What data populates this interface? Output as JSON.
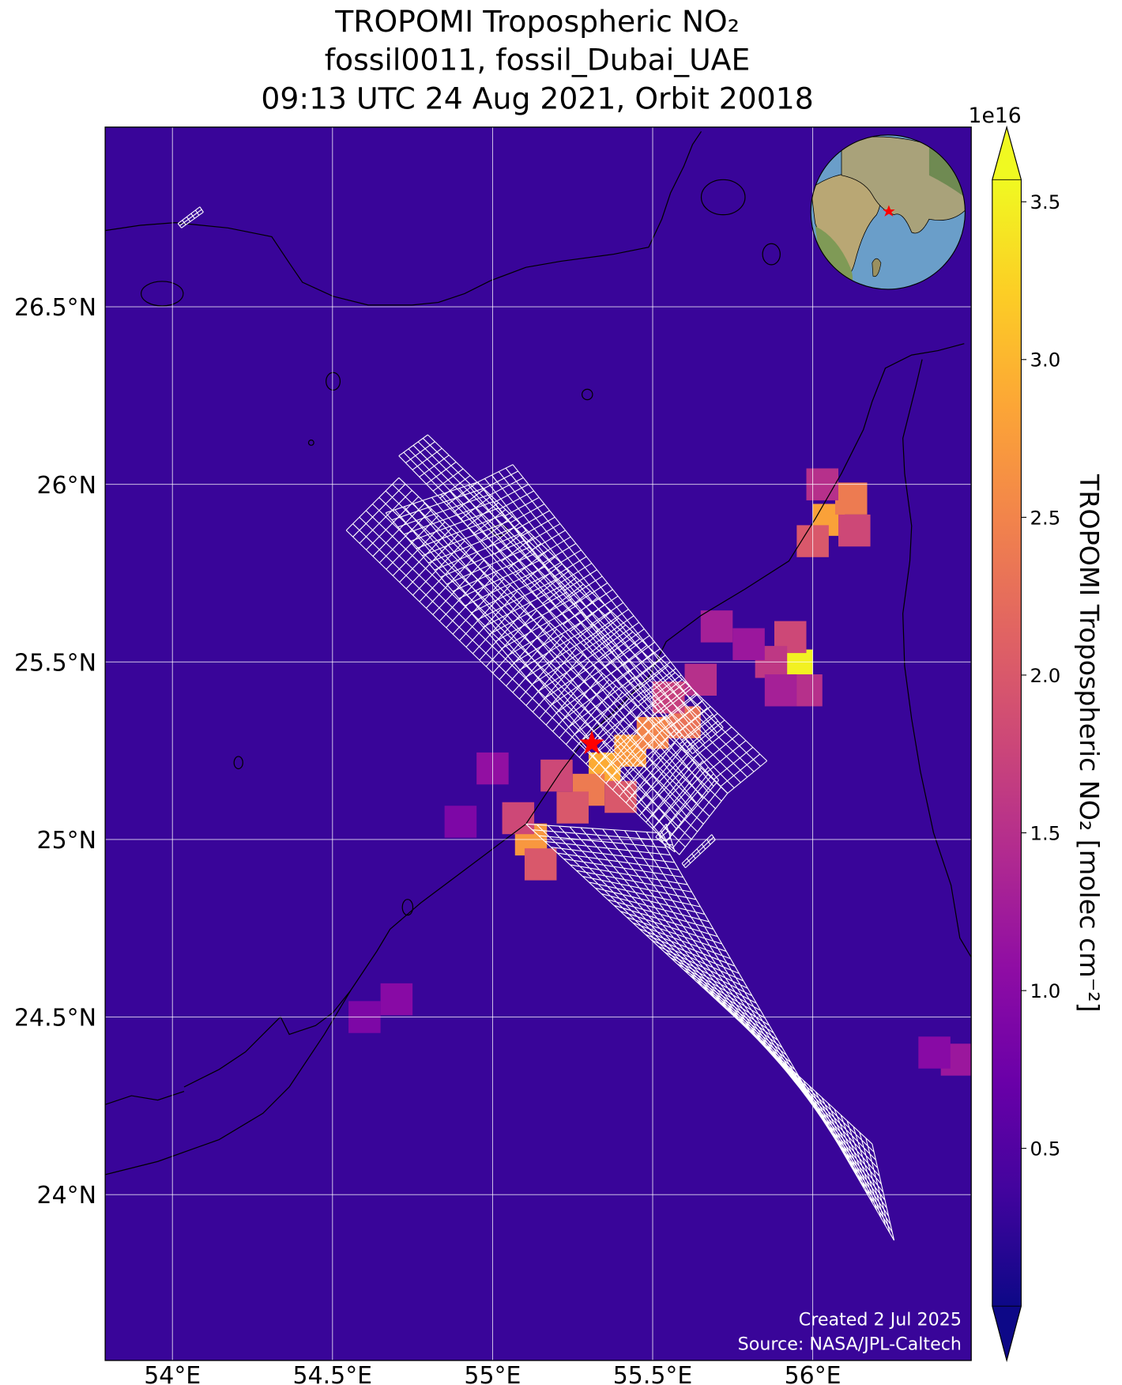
{
  "chart_data": {
    "type": "map",
    "title_lines": [
      "TROPOMI Tropospheric NO₂",
      "fossil0011, fossil_Dubai_UAE",
      "09:13 UTC 24 Aug 2021, Orbit 20018"
    ],
    "xlim": [
      53.79,
      56.495
    ],
    "ylim": [
      23.533,
      27.006
    ],
    "xticks": [
      {
        "value": 54,
        "label": "54°E"
      },
      {
        "value": 54.5,
        "label": "54.5°E"
      },
      {
        "value": 55,
        "label": "55°E"
      },
      {
        "value": 55.5,
        "label": "55.5°E"
      },
      {
        "value": 56,
        "label": "56°E"
      }
    ],
    "yticks": [
      {
        "value": 24,
        "label": "24°N"
      },
      {
        "value": 24.5,
        "label": "24.5°N"
      },
      {
        "value": 25,
        "label": "25°N"
      },
      {
        "value": 25.5,
        "label": "25.5°N"
      },
      {
        "value": 26,
        "label": "26°N"
      },
      {
        "value": 26.5,
        "label": "26.5°N"
      }
    ],
    "grid": true,
    "colormap": "plasma",
    "colorbar": {
      "label": "TROPOMI Tropospheric NO₂ [molec cm⁻²]",
      "offset_text": "1e16",
      "lim": [
        0,
        3.57
      ],
      "ticks": [
        0.5,
        {
          "value": 1,
          "label": "1.0"
        },
        1.5,
        {
          "value": 2,
          "label": "2.0"
        },
        2.5,
        {
          "value": 3,
          "label": "3.0"
        },
        3.5
      ]
    },
    "background": 0.3,
    "cells": [
      {
        "lon": 55.95,
        "lat": 25.49,
        "value": 3.5
      },
      {
        "lon": 55.93,
        "lat": 25.57,
        "value": 1.8
      },
      {
        "lon": 55.87,
        "lat": 25.5,
        "value": 1.6
      },
      {
        "lon": 55.98,
        "lat": 25.42,
        "value": 1.5
      },
      {
        "lon": 55.9,
        "lat": 25.42,
        "value": 1.3
      },
      {
        "lon": 56.05,
        "lat": 25.9,
        "value": 2.8
      },
      {
        "lon": 56.12,
        "lat": 25.96,
        "value": 2.4
      },
      {
        "lon": 56.0,
        "lat": 25.84,
        "value": 2.0
      },
      {
        "lon": 56.13,
        "lat": 25.87,
        "value": 1.8
      },
      {
        "lon": 56.03,
        "lat": 26.0,
        "value": 1.5
      },
      {
        "lon": 55.12,
        "lat": 25.0,
        "value": 2.7
      },
      {
        "lon": 55.15,
        "lat": 24.93,
        "value": 2.0
      },
      {
        "lon": 55.08,
        "lat": 25.06,
        "value": 1.8
      },
      {
        "lon": 55.35,
        "lat": 25.2,
        "value": 2.9
      },
      {
        "lon": 55.43,
        "lat": 25.25,
        "value": 2.7
      },
      {
        "lon": 55.5,
        "lat": 25.3,
        "value": 2.5
      },
      {
        "lon": 55.6,
        "lat": 25.33,
        "value": 2.3
      },
      {
        "lon": 55.3,
        "lat": 25.14,
        "value": 2.4
      },
      {
        "lon": 55.4,
        "lat": 25.12,
        "value": 2.0
      },
      {
        "lon": 55.25,
        "lat": 25.09,
        "value": 2.0
      },
      {
        "lon": 55.2,
        "lat": 25.18,
        "value": 1.8
      },
      {
        "lon": 55.55,
        "lat": 25.4,
        "value": 1.7
      },
      {
        "lon": 55.65,
        "lat": 25.45,
        "value": 1.5
      },
      {
        "lon": 55.7,
        "lat": 25.6,
        "value": 1.3
      },
      {
        "lon": 55.8,
        "lat": 25.55,
        "value": 1.2
      },
      {
        "lon": 54.7,
        "lat": 24.55,
        "value": 1.0
      },
      {
        "lon": 54.6,
        "lat": 24.5,
        "value": 0.9
      },
      {
        "lon": 56.45,
        "lat": 24.38,
        "value": 1.2
      },
      {
        "lon": 56.38,
        "lat": 24.4,
        "value": 1.0
      },
      {
        "lon": 55.0,
        "lat": 25.2,
        "value": 1.1
      },
      {
        "lon": 54.9,
        "lat": 25.05,
        "value": 0.9
      }
    ],
    "site": {
      "lon": 55.31,
      "lat": 25.27,
      "color": "#ff0000"
    },
    "annotations": [
      "Created 2 Jul 2025",
      "Source: NASA/JPL-Caltech"
    ]
  }
}
